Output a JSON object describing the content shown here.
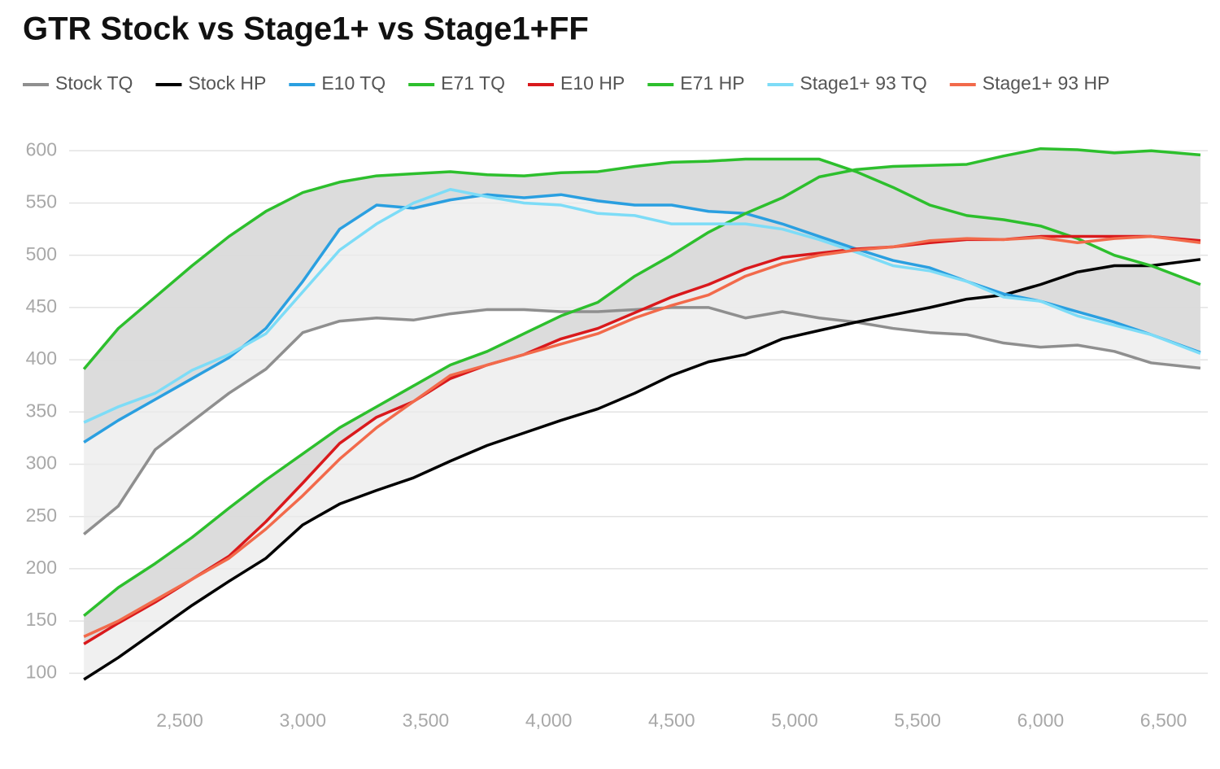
{
  "chart_data": {
    "type": "line",
    "title": "GTR Stock vs Stage1+ vs Stage1+FF",
    "x": [
      2110,
      2250,
      2400,
      2550,
      2700,
      2850,
      3000,
      3150,
      3300,
      3450,
      3600,
      3750,
      3900,
      4050,
      4200,
      4350,
      4500,
      4650,
      4800,
      4950,
      5100,
      5250,
      5400,
      5550,
      5700,
      5850,
      6000,
      6150,
      6300,
      6450,
      6650
    ],
    "series": [
      {
        "name": "Stock TQ",
        "color": "#8f8f8f",
        "values": [
          233,
          260,
          314,
          341,
          368,
          391,
          426,
          437,
          440,
          438,
          444,
          448,
          448,
          446,
          446,
          448,
          450,
          450,
          440,
          446,
          440,
          436,
          430,
          426,
          424,
          416,
          412,
          414,
          408,
          397,
          392
        ]
      },
      {
        "name": "Stock HP",
        "color": "#000000",
        "values": [
          94,
          115,
          140,
          165,
          188,
          210,
          242,
          262,
          275,
          287,
          303,
          318,
          330,
          342,
          353,
          368,
          385,
          398,
          405,
          420,
          428,
          436,
          443,
          450,
          458,
          462,
          472,
          484,
          490,
          490,
          496
        ]
      },
      {
        "name": "E10 TQ",
        "color": "#2a9fe0",
        "values": [
          321,
          342,
          362,
          382,
          402,
          430,
          475,
          525,
          548,
          545,
          553,
          558,
          555,
          558,
          552,
          548,
          548,
          542,
          540,
          530,
          518,
          506,
          495,
          488,
          475,
          463,
          456,
          446,
          436,
          424,
          407
        ]
      },
      {
        "name": "E71 TQ",
        "color": "#2dbf2d",
        "values": [
          391,
          430,
          460,
          490,
          518,
          542,
          560,
          570,
          576,
          578,
          580,
          577,
          576,
          579,
          580,
          585,
          589,
          590,
          592,
          592,
          592,
          580,
          565,
          548,
          538,
          534,
          528,
          516,
          500,
          490,
          472
        ]
      },
      {
        "name": "E10 HP",
        "color": "#d9191c",
        "values": [
          128,
          148,
          168,
          190,
          212,
          245,
          282,
          320,
          345,
          360,
          382,
          395,
          405,
          420,
          430,
          445,
          460,
          472,
          487,
          498,
          502,
          506,
          508,
          512,
          515,
          515,
          518,
          518,
          518,
          518,
          514
        ]
      },
      {
        "name": "E71 HP",
        "color": "#2dbf2d",
        "values": [
          155,
          182,
          205,
          230,
          258,
          285,
          310,
          335,
          355,
          375,
          395,
          408,
          425,
          442,
          455,
          480,
          500,
          522,
          540,
          555,
          575,
          582,
          585,
          586,
          587,
          595,
          602,
          601,
          598,
          600,
          596
        ]
      },
      {
        "name": "Stage1+ 93 TQ",
        "color": "#7ddcf7",
        "values": [
          340,
          355,
          368,
          390,
          405,
          425,
          465,
          505,
          530,
          550,
          563,
          556,
          550,
          548,
          540,
          538,
          530,
          530,
          530,
          525,
          515,
          503,
          490,
          485,
          475,
          460,
          456,
          442,
          433,
          424,
          406
        ]
      },
      {
        "name": "Stage1+ 93 HP",
        "color": "#f26a4b",
        "values": [
          135,
          150,
          170,
          190,
          210,
          238,
          270,
          305,
          335,
          360,
          385,
          395,
          405,
          415,
          425,
          440,
          452,
          462,
          480,
          492,
          500,
          505,
          508,
          514,
          516,
          515,
          517,
          512,
          516,
          518,
          512
        ]
      }
    ],
    "bands": [
      {
        "series": [
          "Stock TQ",
          "E71 TQ"
        ],
        "color": "#ebebeb"
      },
      {
        "series": [
          "E10 TQ",
          "E71 TQ"
        ],
        "color": "#d6d6d6"
      },
      {
        "series": [
          "Stock HP",
          "E71 HP"
        ],
        "color": "#ebebeb"
      },
      {
        "series": [
          "E10 HP",
          "E71 HP"
        ],
        "color": "#d6d6d6"
      }
    ],
    "xlim": [
      2050,
      6680
    ],
    "ylim": [
      80,
      615
    ],
    "yticks": [
      100,
      150,
      200,
      250,
      300,
      350,
      400,
      450,
      500,
      550,
      600
    ],
    "xticks": [
      {
        "value": 2500,
        "label": "2,500"
      },
      {
        "value": 3000,
        "label": "3,000"
      },
      {
        "value": 3500,
        "label": "3,500"
      },
      {
        "value": 4000,
        "label": "4,000"
      },
      {
        "value": 4500,
        "label": "4,500"
      },
      {
        "value": 5000,
        "label": "5,000"
      },
      {
        "value": 5500,
        "label": "5,500"
      },
      {
        "value": 6000,
        "label": "6,000"
      },
      {
        "value": 6500,
        "label": "6,500"
      }
    ],
    "grid": true,
    "legend": "top"
  }
}
